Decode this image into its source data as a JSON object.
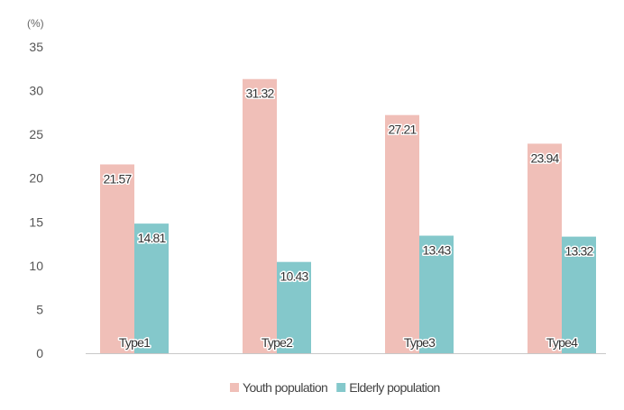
{
  "chart_data": {
    "type": "bar",
    "y_unit_label": "(%)",
    "categories": [
      "Type1",
      "Type2",
      "Type3",
      "Type4"
    ],
    "series": [
      {
        "name": "Youth population",
        "values": [
          21.57,
          31.32,
          27.21,
          23.94
        ],
        "color": "#f0bfb8"
      },
      {
        "name": "Elderly population",
        "values": [
          14.81,
          10.43,
          13.43,
          13.32
        ],
        "color": "#84c8cb"
      }
    ],
    "ylim": [
      0,
      35
    ],
    "yticks": [
      "0",
      "5",
      "10",
      "15",
      "20",
      "25",
      "30",
      "35"
    ],
    "data_labels": [
      [
        "21.57",
        "31.32",
        "27.21",
        "23.94"
      ],
      [
        "14.81",
        "10.43",
        "13.43",
        "13.32"
      ]
    ],
    "grid": false,
    "legend_position": "bottom-center"
  }
}
